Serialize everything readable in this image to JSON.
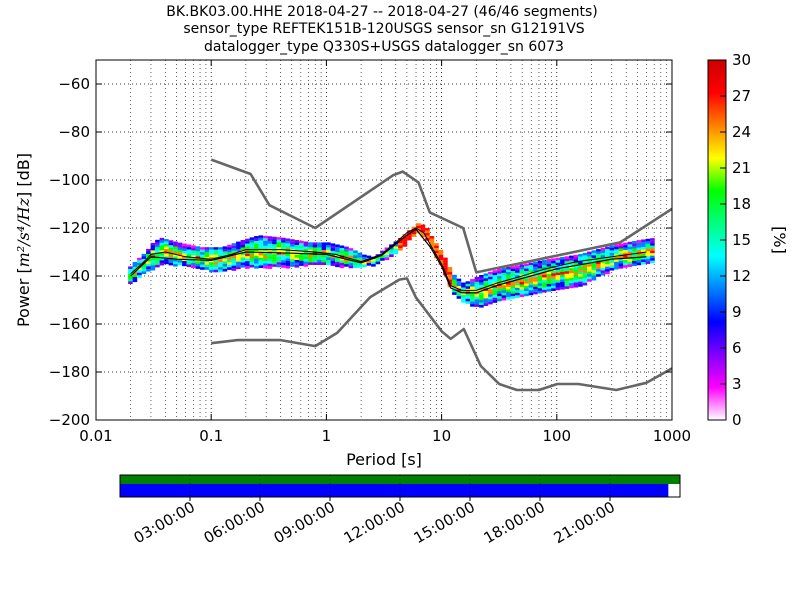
{
  "chart_data": [
    {
      "type": "heatmap",
      "title_lines": [
        "BK.BK03.00.HHE   2018-04-27 -- 2018-04-27  (46/46 segments)",
        "sensor_type REFTEK151B-120USGS sensor_sn G12191VS",
        "datalogger_type Q330S+USGS datalogger_sn 6073"
      ],
      "xlabel": "Period [s]",
      "ylabel_prefix": "Power [",
      "ylabel_math": "m²/s⁴/Hz",
      "ylabel_suffix": "] [dB]",
      "xscale": "log",
      "xlim": [
        0.01,
        1000
      ],
      "ylim": [
        -200,
        -50
      ],
      "x_ticks": [
        0.01,
        0.1,
        1,
        10,
        100,
        1000
      ],
      "x_tick_labels": [
        "0.01",
        "0.1",
        "1",
        "10",
        "100",
        "1000"
      ],
      "y_ticks": [
        -200,
        -180,
        -160,
        -140,
        -120,
        -100,
        -80,
        -60
      ],
      "y_tick_labels": [
        "−200",
        "−180",
        "−160",
        "−140",
        "−120",
        "−100",
        "−80",
        "−60"
      ],
      "grid": true,
      "colorbar": {
        "label": "[%]",
        "range": [
          0,
          30
        ],
        "ticks": [
          0,
          3,
          6,
          9,
          12,
          15,
          18,
          21,
          24,
          27,
          30
        ],
        "tick_labels": [
          "0",
          "3",
          "6",
          "9",
          "12",
          "15",
          "18",
          "21",
          "24",
          "27",
          "30"
        ],
        "colors": [
          "#ffffff",
          "#ff00ff",
          "#8000ff",
          "#0000ff",
          "#0080ff",
          "#00ffff",
          "#00ff80",
          "#00ff00",
          "#ffff00",
          "#ff8000",
          "#ff0000",
          "#cc0000"
        ]
      },
      "series": [
        {
          "role": "noise-model-high",
          "points": [
            [
              0.1,
              -91.5
            ],
            [
              0.22,
              -97.5
            ],
            [
              0.32,
              -110.5
            ],
            [
              0.8,
              -120
            ],
            [
              3.8,
              -98
            ],
            [
              4.6,
              -96.5
            ],
            [
              6.3,
              -101
            ],
            [
              7.9,
              -113.5
            ],
            [
              15.4,
              -120
            ],
            [
              20,
              -138.5
            ],
            [
              354.8,
              -126
            ],
            [
              1000,
              -112
            ]
          ]
        },
        {
          "role": "noise-model-low",
          "points": [
            [
              0.1,
              -168
            ],
            [
              0.17,
              -166.7
            ],
            [
              0.4,
              -166.7
            ],
            [
              0.8,
              -169.2
            ],
            [
              1.24,
              -163.7
            ],
            [
              2.4,
              -148.8
            ],
            [
              4.3,
              -141.5
            ],
            [
              5.0,
              -141
            ],
            [
              6.0,
              -149
            ],
            [
              10,
              -163
            ],
            [
              12,
              -166.2
            ],
            [
              15.6,
              -162.1
            ],
            [
              21.9,
              -177.5
            ],
            [
              31.6,
              -185
            ],
            [
              45,
              -187.5
            ],
            [
              70,
              -187.5
            ],
            [
              101,
              -185
            ],
            [
              154,
              -185
            ],
            [
              328,
              -187.5
            ],
            [
              600,
              -184.5
            ],
            [
              1000,
              -178.5
            ]
          ]
        },
        {
          "role": "mode",
          "points": [
            [
              0.02,
              -139
            ],
            [
              0.025,
              -135
            ],
            [
              0.03,
              -131
            ],
            [
              0.04,
              -130
            ],
            [
              0.06,
              -132
            ],
            [
              0.1,
              -133
            ],
            [
              0.15,
              -131
            ],
            [
              0.2,
              -129
            ],
            [
              0.4,
              -129
            ],
            [
              0.8,
              -130
            ],
            [
              1.2,
              -131
            ],
            [
              2,
              -134
            ],
            [
              3,
              -131
            ],
            [
              4,
              -126
            ],
            [
              5,
              -122
            ],
            [
              6,
              -120
            ],
            [
              7,
              -122
            ],
            [
              8,
              -127
            ],
            [
              10,
              -135
            ],
            [
              12,
              -144
            ],
            [
              15,
              -146
            ],
            [
              20,
              -146
            ],
            [
              30,
              -143
            ],
            [
              50,
              -140
            ],
            [
              80,
              -137
            ],
            [
              150,
              -134
            ],
            [
              300,
              -132
            ],
            [
              600,
              -130
            ]
          ]
        },
        {
          "role": "mean",
          "points": [
            [
              0.02,
              -140
            ],
            [
              0.03,
              -132
            ],
            [
              0.05,
              -133
            ],
            [
              0.1,
              -133.5
            ],
            [
              0.2,
              -130
            ],
            [
              0.5,
              -130.5
            ],
            [
              1,
              -131
            ],
            [
              2,
              -134.5
            ],
            [
              3,
              -131.5
            ],
            [
              5,
              -123
            ],
            [
              6,
              -120.5
            ],
            [
              8,
              -128
            ],
            [
              10,
              -136
            ],
            [
              12,
              -145
            ],
            [
              15,
              -147
            ],
            [
              20,
              -147
            ],
            [
              30,
              -144
            ],
            [
              50,
              -141
            ],
            [
              100,
              -137
            ],
            [
              300,
              -133
            ],
            [
              600,
              -132
            ]
          ]
        }
      ],
      "heatmap_band": [
        [
          0.019,
          -143,
          -136
        ],
        [
          0.022,
          -141,
          -133
        ],
        [
          0.026,
          -138,
          -130
        ],
        [
          0.03,
          -137,
          -126
        ],
        [
          0.035,
          -135,
          -124
        ],
        [
          0.05,
          -135,
          -126
        ],
        [
          0.08,
          -137,
          -128
        ],
        [
          0.12,
          -138,
          -128
        ],
        [
          0.18,
          -136,
          -125
        ],
        [
          0.25,
          -136,
          -123
        ],
        [
          0.4,
          -136,
          -124
        ],
        [
          0.7,
          -135,
          -126
        ],
        [
          1.0,
          -135,
          -126
        ],
        [
          1.5,
          -136,
          -128
        ],
        [
          2.0,
          -136,
          -131
        ],
        [
          2.5,
          -135,
          -132
        ],
        [
          3.0,
          -133,
          -129
        ],
        [
          4.0,
          -130,
          -125
        ],
        [
          5.0,
          -125,
          -121
        ],
        [
          6.0,
          -122,
          -118
        ],
        [
          7.0,
          -124,
          -119
        ],
        [
          8.0,
          -129,
          -124
        ],
        [
          10,
          -137,
          -131
        ],
        [
          12,
          -147,
          -139
        ],
        [
          15,
          -151,
          -143
        ],
        [
          20,
          -153,
          -140
        ],
        [
          30,
          -150,
          -137
        ],
        [
          50,
          -148,
          -135
        ],
        [
          80,
          -146,
          -133
        ],
        [
          150,
          -144,
          -131
        ],
        [
          300,
          -137,
          -127
        ],
        [
          500,
          -135,
          -125
        ],
        [
          700,
          -134,
          -124
        ]
      ]
    },
    {
      "type": "bar",
      "role": "data-availability-timeline",
      "time_ticks": [
        "03:00:00",
        "06:00:00",
        "09:00:00",
        "12:00:00",
        "15:00:00",
        "18:00:00",
        "21:00:00"
      ],
      "time_tick_hours": [
        3,
        6,
        9,
        12,
        15,
        18,
        21
      ],
      "span_hours": [
        0,
        24
      ],
      "rows": [
        {
          "role": "top",
          "color": "#008000",
          "start_hour": 0,
          "end_hour": 24
        },
        {
          "role": "bottom",
          "color": "#0000ff",
          "start_hour": 0,
          "end_hour": 23.5
        }
      ]
    }
  ]
}
